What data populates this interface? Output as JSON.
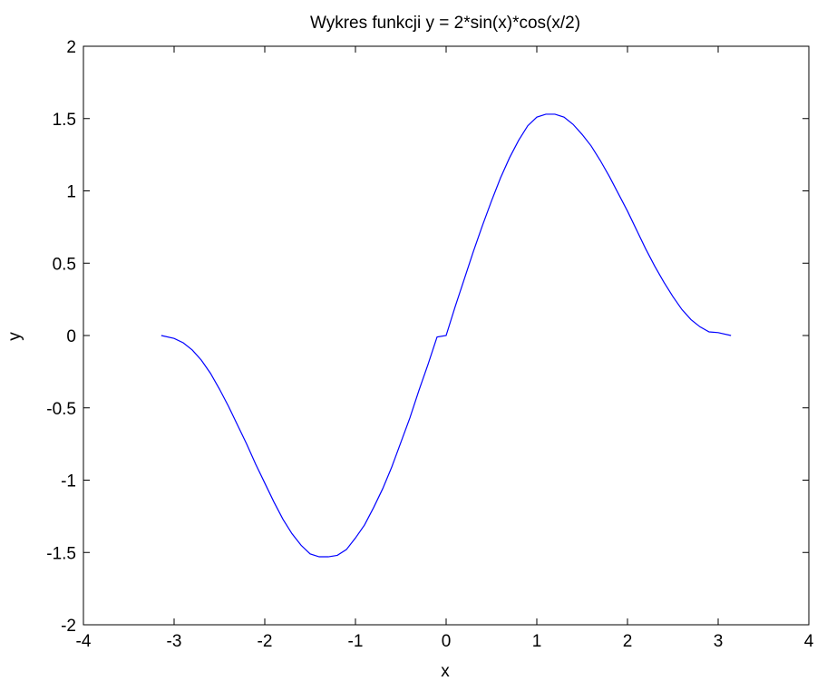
{
  "chart_data": {
    "type": "line",
    "title": "Wykres funkcji y = 2*sin(x)*cos(x/2)",
    "xlabel": "x",
    "ylabel": "y",
    "xlim": [
      -4,
      4
    ],
    "ylim": [
      -2,
      2
    ],
    "xticks": [
      -4,
      -3,
      -2,
      -1,
      0,
      1,
      2,
      3,
      4
    ],
    "yticks": [
      -2,
      -1.5,
      -1,
      -0.5,
      0,
      0.5,
      1,
      1.5,
      2
    ],
    "grid": false,
    "legend": "none",
    "series": [
      {
        "color": "#0000ff",
        "x": [
          -3.1416,
          -3.0,
          -2.9,
          -2.8,
          -2.7,
          -2.6,
          -2.5,
          -2.4,
          -2.3,
          -2.2,
          -2.1,
          -2.0,
          -1.9,
          -1.8,
          -1.7,
          -1.6,
          -1.5,
          -1.4,
          -1.3,
          -1.2,
          -1.1,
          -1.0,
          -0.9,
          -0.8,
          -0.7,
          -0.6,
          -0.5,
          -0.4,
          -0.3,
          -0.2,
          -0.1,
          0.0,
          0.1,
          0.2,
          0.3,
          0.4,
          0.5,
          0.6,
          0.7,
          0.8,
          0.9,
          1.0,
          1.1,
          1.2,
          1.3,
          1.4,
          1.5,
          1.6,
          1.7,
          1.8,
          1.9,
          2.0,
          2.1,
          2.2,
          2.3,
          2.4,
          2.5,
          2.6,
          2.7,
          2.8,
          2.9,
          3.0,
          3.1416
        ],
        "y": [
          0.0,
          -0.02,
          -0.05,
          -0.1,
          -0.17,
          -0.26,
          -0.37,
          -0.49,
          -0.62,
          -0.75,
          -0.89,
          -1.02,
          -1.15,
          -1.27,
          -1.37,
          -1.45,
          -1.51,
          -1.53,
          -1.53,
          -1.52,
          -1.48,
          -1.4,
          -1.31,
          -1.19,
          -1.06,
          -0.91,
          -0.74,
          -0.57,
          -0.38,
          -0.2,
          -0.01,
          0.0,
          0.2,
          0.39,
          0.58,
          0.76,
          0.93,
          1.09,
          1.23,
          1.35,
          1.45,
          1.51,
          1.53,
          1.53,
          1.51,
          1.46,
          1.39,
          1.31,
          1.21,
          1.1,
          0.98,
          0.86,
          0.73,
          0.6,
          0.48,
          0.37,
          0.27,
          0.18,
          0.11,
          0.06,
          0.025,
          0.02,
          0.0
        ]
      }
    ]
  }
}
